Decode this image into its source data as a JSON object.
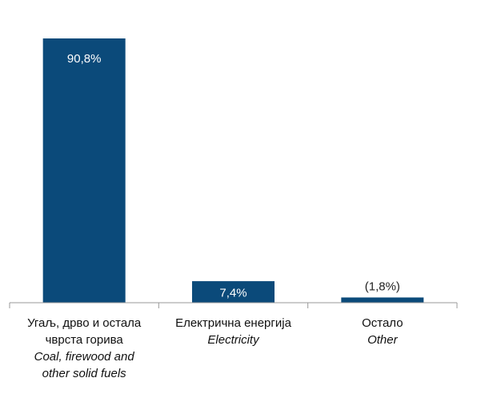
{
  "chart_data": {
    "type": "bar",
    "categories": [
      {
        "label_sr": "Угаљ, дрво и остала чврста горива",
        "label_sr_lines": [
          "Угаљ, дрво и остала",
          "чврста горива"
        ],
        "label_en": "Coal, firewood and other solid fuels",
        "label_en_lines": [
          "Coal, firewood and",
          "other solid fuels"
        ]
      },
      {
        "label_sr": "Електрична енергија",
        "label_sr_lines": [
          "Електрична енергија"
        ],
        "label_en": "Electricity",
        "label_en_lines": [
          "Electricity"
        ]
      },
      {
        "label_sr": "Остало",
        "label_sr_lines": [
          "Остало"
        ],
        "label_en": "Other",
        "label_en_lines": [
          "Other"
        ]
      }
    ],
    "values": [
      90.8,
      7.4,
      1.8
    ],
    "data_labels": [
      "90,8%",
      "7,4%",
      "(1,8%)"
    ],
    "ylim": [
      0,
      100
    ],
    "grid": false,
    "bar_color": "#0b4a7a",
    "label_color_inside": "#ffffff",
    "label_color_outside": "#222222",
    "axis_color": "#9a9a9a"
  }
}
